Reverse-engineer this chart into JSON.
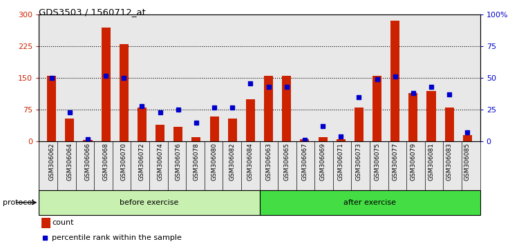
{
  "title": "GDS3503 / 1560712_at",
  "categories": [
    "GSM306062",
    "GSM306064",
    "GSM306066",
    "GSM306068",
    "GSM306070",
    "GSM306072",
    "GSM306074",
    "GSM306076",
    "GSM306078",
    "GSM306080",
    "GSM306082",
    "GSM306084",
    "GSM306063",
    "GSM306065",
    "GSM306067",
    "GSM306069",
    "GSM306071",
    "GSM306073",
    "GSM306075",
    "GSM306077",
    "GSM306079",
    "GSM306081",
    "GSM306083",
    "GSM306085"
  ],
  "count_values": [
    155,
    55,
    3,
    270,
    230,
    80,
    40,
    35,
    10,
    60,
    55,
    100,
    155,
    155,
    5,
    10,
    5,
    80,
    155,
    285,
    115,
    120,
    80,
    15
  ],
  "percentile_values": [
    50,
    23,
    2,
    52,
    50,
    28,
    23,
    25,
    15,
    27,
    27,
    46,
    43,
    43,
    1,
    12,
    4,
    35,
    49,
    51,
    38,
    43,
    37,
    7
  ],
  "before_exercise_count": 12,
  "group_labels": [
    "before exercise",
    "after exercise"
  ],
  "before_color": "#C8F0B0",
  "after_color": "#44DD44",
  "bar_color": "#CC2200",
  "dot_color": "#0000CC",
  "ylim_left": [
    0,
    300
  ],
  "ylim_right": [
    0,
    100
  ],
  "yticks_left": [
    0,
    75,
    150,
    225,
    300
  ],
  "yticks_right": [
    0,
    25,
    50,
    75,
    100
  ],
  "ytick_labels_right": [
    "0",
    "25",
    "50",
    "75",
    "100%"
  ],
  "grid_values": [
    75,
    150,
    225
  ],
  "bar_width": 0.5,
  "protocol_label": "protocol",
  "legend_count_label": "count",
  "legend_percentile_label": "percentile rank within the sample",
  "bg_color": "#E8E8E8"
}
